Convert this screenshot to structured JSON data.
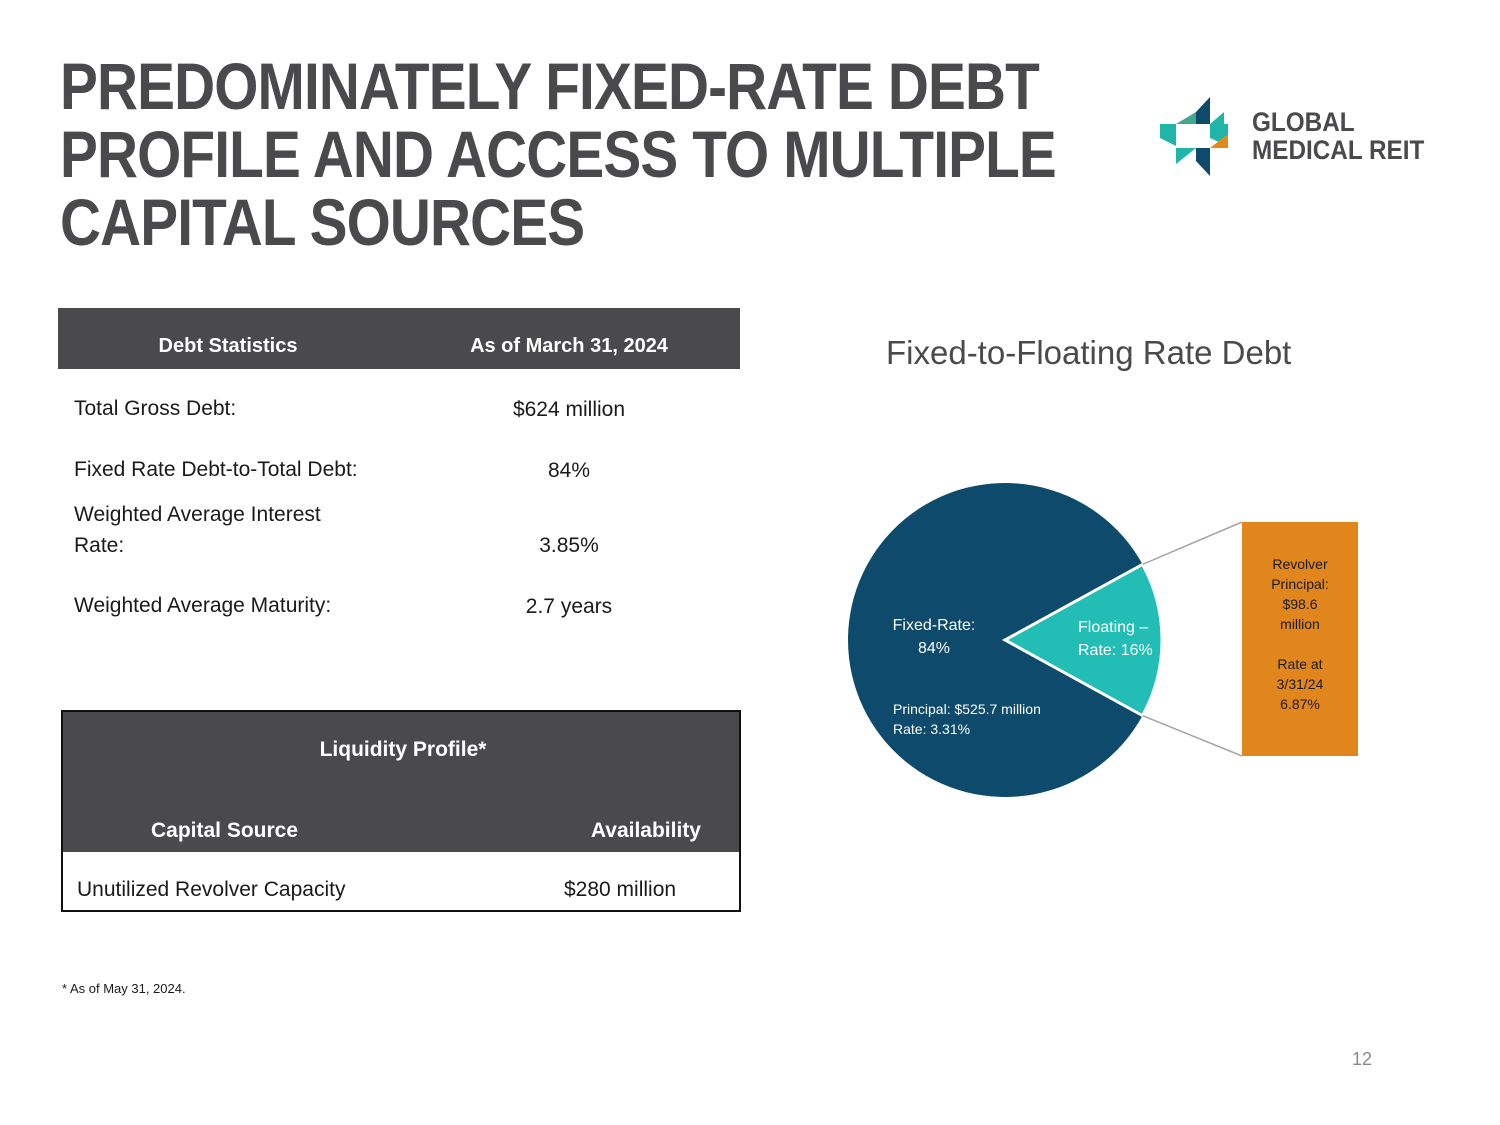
{
  "title": {
    "line1": "PREDOMINATELY FIXED-RATE DEBT",
    "line2": "PROFILE AND ACCESS TO MULTIPLE",
    "line3": "CAPITAL SOURCES"
  },
  "logo": {
    "line1": "GLOBAL",
    "line2": "MEDICAL REIT",
    "colors": {
      "teal": "#1fb5a8",
      "navy": "#0e4a6b",
      "orange": "#e8861a",
      "green": "#43a78e"
    }
  },
  "debt_table": {
    "header": [
      "Debt Statistics",
      "As of March 31, 2024"
    ],
    "rows": [
      {
        "label": "Total Gross Debt:",
        "value": "$624 million"
      },
      {
        "label": "Fixed Rate Debt-to-Total Debt:",
        "value": "84%"
      },
      {
        "label_line1": "Weighted Average Interest",
        "label_line2": "Rate:",
        "value": "3.85%"
      },
      {
        "label": "Weighted Average Maturity:",
        "value": "2.7 years"
      }
    ]
  },
  "liquidity_table": {
    "title": "Liquidity Profile*",
    "columns": [
      "Capital Source",
      "Availability"
    ],
    "row": {
      "source": "Unutilized Revolver Capacity",
      "availability": "$280 million"
    }
  },
  "footnote": "* As of May 31, 2024.",
  "page_number": "12",
  "chart_data": {
    "type": "pie",
    "title": "Fixed-to-Floating Rate Debt",
    "slices": [
      {
        "name": "Fixed-Rate",
        "value": 84,
        "color": "#0e4a6b",
        "label_line1": "Fixed-Rate:",
        "label_line2": "84%",
        "detail_line1": "Principal:  $525.7 million",
        "detail_line2": "Rate: 3.31%"
      },
      {
        "name": "Floating",
        "value": 16,
        "color": "#22bdb4",
        "label_line1": "Floating –",
        "label_line2": "Rate:  16%"
      }
    ],
    "breakout": {
      "color": "#e0861c",
      "lines": [
        "Revolver",
        "Principal:",
        "$98.6",
        "million",
        "",
        "Rate at",
        "3/31/24",
        "6.87%"
      ]
    }
  }
}
